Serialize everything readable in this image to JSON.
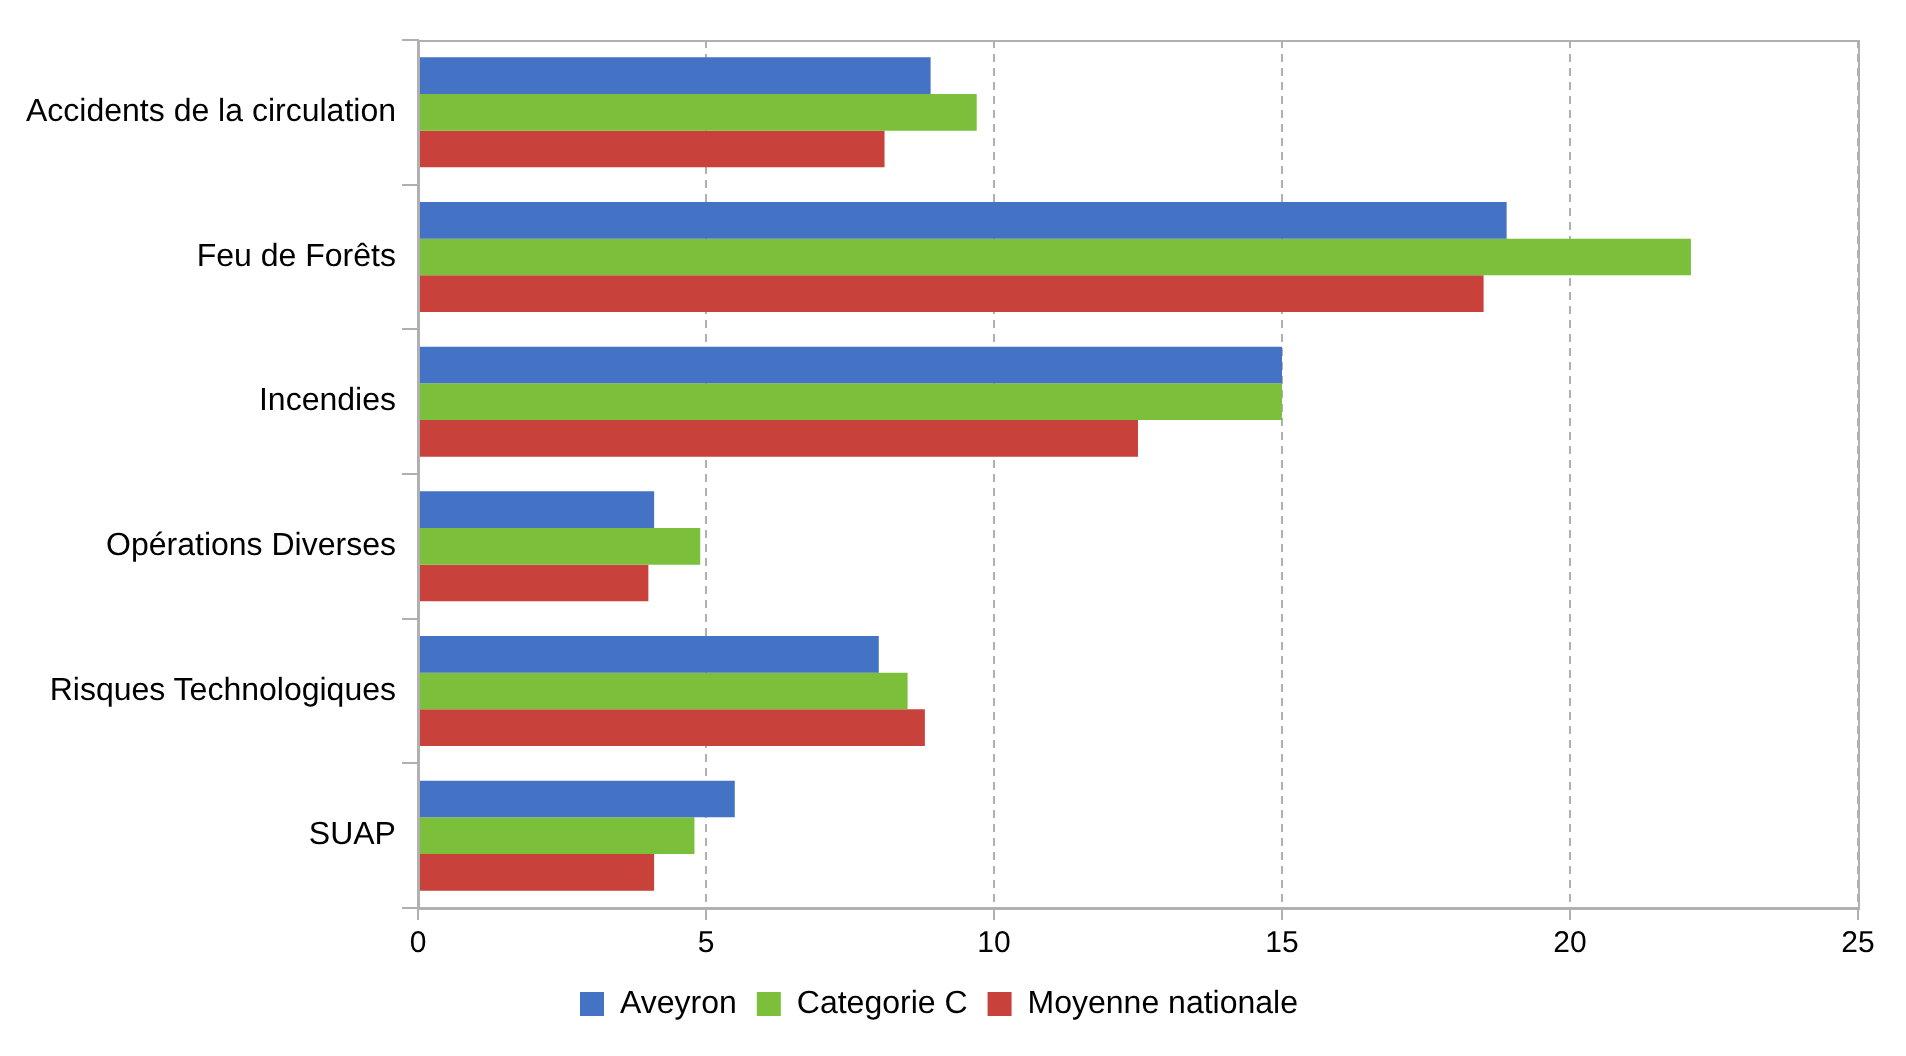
{
  "chart_data": {
    "type": "bar",
    "orientation": "horizontal",
    "categories": [
      "Accidents de la circulation",
      "Feu de Forêts",
      "Incendies",
      "Opérations Diverses",
      "Risques Technologiques",
      "SUAP"
    ],
    "series": [
      {
        "name": "Aveyron",
        "color": "#4472c4",
        "values": [
          8.9,
          18.9,
          15.0,
          4.1,
          8.0,
          5.5
        ]
      },
      {
        "name": "Categorie C",
        "color": "#7cbf3a",
        "values": [
          9.7,
          22.1,
          15.0,
          4.9,
          8.5,
          4.8
        ]
      },
      {
        "name": "Moyenne nationale",
        "color": "#c9413b",
        "values": [
          8.1,
          18.5,
          12.5,
          4.0,
          8.8,
          4.1
        ]
      }
    ],
    "xlim": [
      0,
      25
    ],
    "xticks": [
      0,
      5,
      10,
      15,
      20,
      25
    ],
    "grid": "x",
    "legend": "bottom"
  }
}
